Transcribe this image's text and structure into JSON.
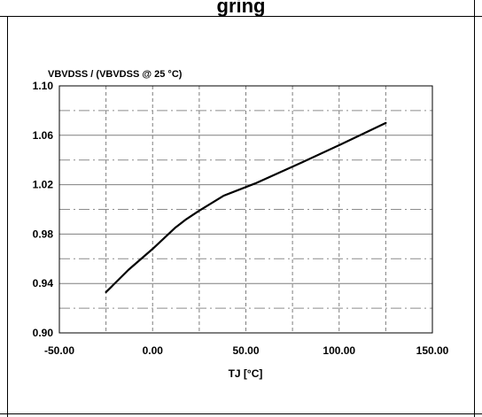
{
  "page": {
    "header_fragment": "gring"
  },
  "chart_data": {
    "type": "line",
    "title": "",
    "ylabel": "VBVDSS / (VBVDSS @ 25 °C)",
    "xlabel": "TJ [°C]",
    "xlim": [
      -50,
      150
    ],
    "ylim": [
      0.9,
      1.1
    ],
    "xticks": [
      -50,
      0,
      50,
      100,
      150
    ],
    "xtick_labels": [
      "-50.00",
      "0.00",
      "50.00",
      "100.00",
      "150.00"
    ],
    "yticks": [
      0.9,
      0.94,
      0.98,
      1.02,
      1.06,
      1.1
    ],
    "ytick_labels": [
      "0.90",
      "0.94",
      "0.98",
      "1.02",
      "1.06",
      "1.10"
    ],
    "minor_x_gridlines": [
      -25,
      25,
      75,
      125
    ],
    "minor_y_gridlines": [
      0.92,
      0.96,
      1.0,
      1.04,
      1.08
    ],
    "grid": true,
    "series": [
      {
        "color": "#000000",
        "x": [
          -25,
          -13,
          0,
          12,
          18,
          25,
          38,
          55,
          80,
          100,
          125
        ],
        "y": [
          0.933,
          0.951,
          0.968,
          0.985,
          0.992,
          0.999,
          1.011,
          1.021,
          1.038,
          1.052,
          1.07
        ]
      }
    ]
  }
}
